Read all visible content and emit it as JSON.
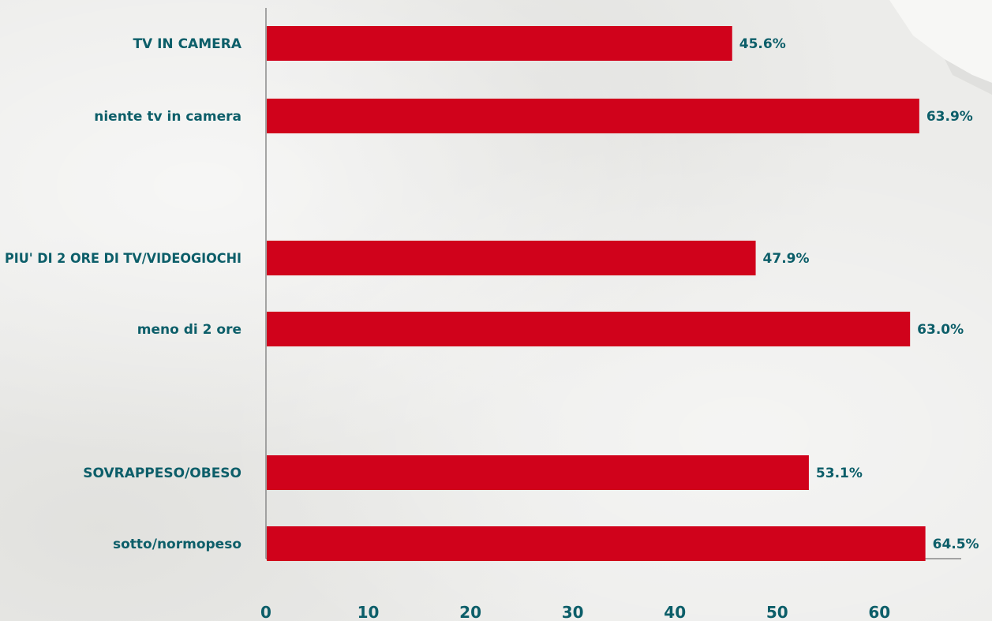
{
  "colors": {
    "bar": "#d0021b",
    "text": "#0c5e69",
    "axis": "#8a8a8a",
    "background": "#ececea"
  },
  "chart_data": {
    "type": "bar",
    "orientation": "horizontal",
    "categories": [
      "TV IN CAMERA",
      "niente tv in camera",
      "PIU' DI 2 ORE DI TV/VIDEOGIOCHI",
      "meno di 2 ore",
      "SOVRAPPESO/OBESO",
      "sotto/normopeso"
    ],
    "groups": [
      [
        "TV IN CAMERA",
        "niente tv in camera"
      ],
      [
        "PIU' DI 2 ORE DI TV/VIDEOGIOCHI",
        "meno di 2 ore"
      ],
      [
        "SOVRAPPESO/OBESO",
        "sotto/normopeso"
      ]
    ],
    "values": [
      45.6,
      63.9,
      47.9,
      63.0,
      53.1,
      64.5
    ],
    "value_labels": [
      "45.6%",
      "63.9%",
      "47.9%",
      "63.0%",
      "53.1%",
      "64.5%"
    ],
    "xlim": [
      0,
      67
    ],
    "xticks": [
      0,
      10,
      20,
      30,
      40,
      50,
      60
    ],
    "grid": false,
    "legend": "none"
  }
}
